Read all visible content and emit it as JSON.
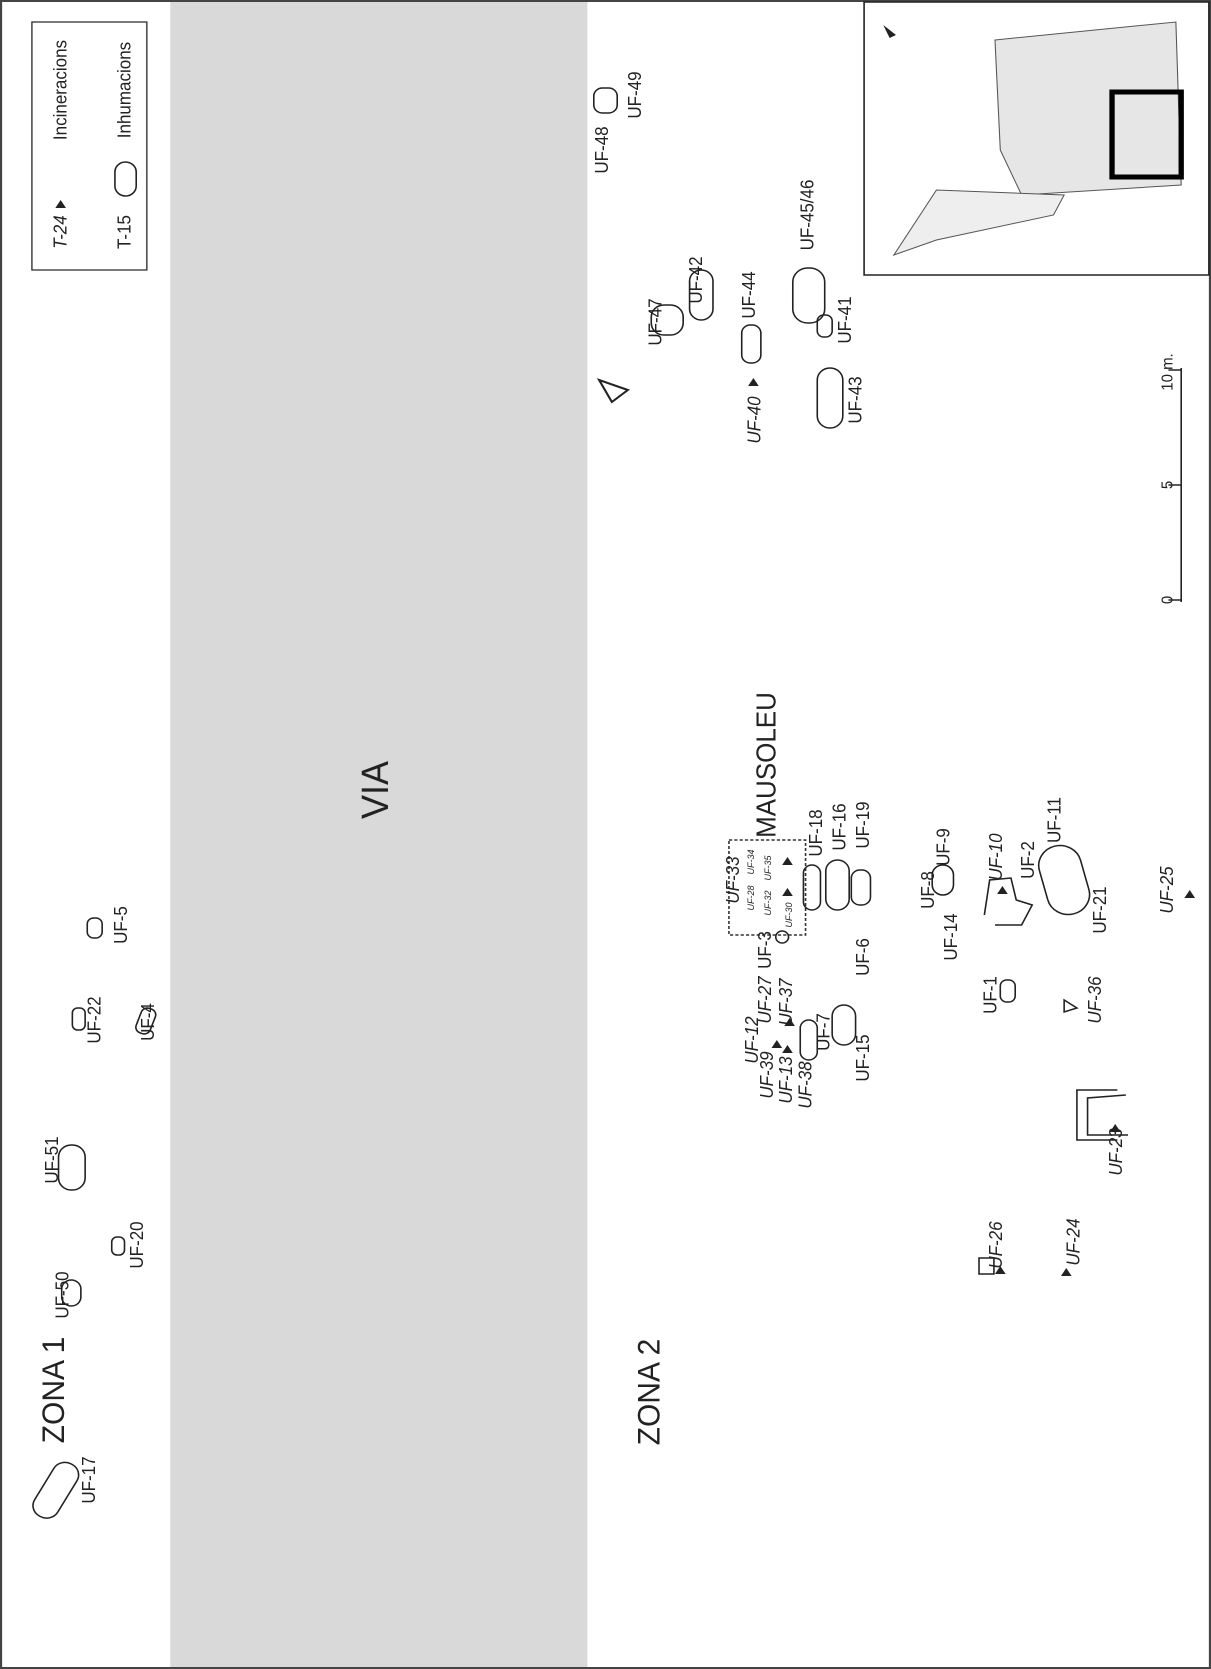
{
  "titles": {
    "zona1": "ZONA 1",
    "via": "VIA",
    "zona2": "ZONA 2",
    "mausoleu": "MAUSOLEU"
  },
  "legend": {
    "cremation_example": "T-24",
    "cremation_label": "Incineracions",
    "burial_example": "T-15",
    "burial_label": "Inhumacions"
  },
  "scale": {
    "ticks": [
      "0",
      "5",
      "10 m."
    ]
  },
  "units": [
    {
      "label": "UF-17",
      "italic": false
    },
    {
      "label": "UF-50",
      "italic": false
    },
    {
      "label": "UF-51",
      "italic": false
    },
    {
      "label": "UF-20",
      "italic": false
    },
    {
      "label": "UF-22",
      "italic": false
    },
    {
      "label": "UF-4",
      "italic": false
    },
    {
      "label": "UF-5",
      "italic": false
    },
    {
      "label": "UF-48",
      "italic": false
    },
    {
      "label": "UF-49",
      "italic": false
    },
    {
      "label": "UF-47",
      "italic": false
    },
    {
      "label": "UF-42",
      "italic": false
    },
    {
      "label": "UF-44",
      "italic": false
    },
    {
      "label": "UF-40",
      "italic": true
    },
    {
      "label": "UF-45/46",
      "italic": false
    },
    {
      "label": "UF-41",
      "italic": false
    },
    {
      "label": "UF-43",
      "italic": false
    },
    {
      "label": "UF-18",
      "italic": false
    },
    {
      "label": "UF-16",
      "italic": false
    },
    {
      "label": "UF-19",
      "italic": false
    },
    {
      "label": "UF-33",
      "italic": true
    },
    {
      "label": "UF-3",
      "italic": false
    },
    {
      "label": "UF-6",
      "italic": false
    },
    {
      "label": "UF-27",
      "italic": true
    },
    {
      "label": "UF-37",
      "italic": true
    },
    {
      "label": "UF-12",
      "italic": true
    },
    {
      "label": "UF-39",
      "italic": true
    },
    {
      "label": "UF-13",
      "italic": true
    },
    {
      "label": "UF-38",
      "italic": true
    },
    {
      "label": "UF-7",
      "italic": false
    },
    {
      "label": "UF-15",
      "italic": false
    },
    {
      "label": "UF-8",
      "italic": false
    },
    {
      "label": "UF-9",
      "italic": false
    },
    {
      "label": "UF-14",
      "italic": false
    },
    {
      "label": "UF-10",
      "italic": true
    },
    {
      "label": "UF-2",
      "italic": false
    },
    {
      "label": "UF-11",
      "italic": false
    },
    {
      "label": "UF-21",
      "italic": false
    },
    {
      "label": "UF-25",
      "italic": true
    },
    {
      "label": "UF-1",
      "italic": false
    },
    {
      "label": "UF-36",
      "italic": true
    },
    {
      "label": "UF-23",
      "italic": true
    },
    {
      "label": "UF-26",
      "italic": true
    },
    {
      "label": "UF-24",
      "italic": true
    },
    {
      "label": "UF-28",
      "italic": true
    },
    {
      "label": "UF-32",
      "italic": true
    },
    {
      "label": "UF-34",
      "italic": true
    },
    {
      "label": "UF-35",
      "italic": true
    },
    {
      "label": "UF-30",
      "italic": true
    }
  ]
}
